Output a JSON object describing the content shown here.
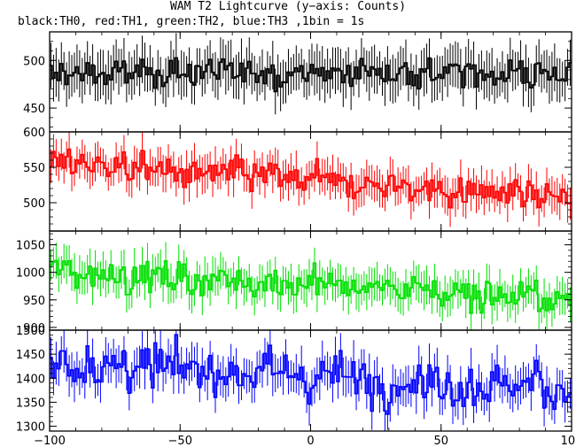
{
  "title": "WAM T2 Lightcurve (y−axis: Counts)",
  "subtitle": "black:TH0, red:TH1, green:TH2, blue:TH3 ,1bin = 1s",
  "chart_data": [
    {
      "type": "line",
      "series": [
        {
          "name": "TH0",
          "color": "#000000",
          "mean": 487,
          "trend": 0,
          "noise": 13,
          "error": 22
        }
      ],
      "x_range": [
        -100,
        100
      ],
      "ylim": [
        425,
        530
      ],
      "yticks": [
        450,
        500
      ],
      "xticks": [
        -100,
        -50,
        0,
        50,
        100
      ]
    },
    {
      "type": "line",
      "series": [
        {
          "name": "TH1",
          "color": "#ff0000",
          "mean": 531,
          "trend": -0.25,
          "noise": 18,
          "error": 23
        }
      ],
      "x_range": [
        -100,
        100
      ],
      "ylim": [
        460,
        600
      ],
      "yticks": [
        500,
        550,
        600
      ],
      "xticks": [
        -100,
        -50,
        0,
        50,
        100
      ]
    },
    {
      "type": "line",
      "series": [
        {
          "name": "TH2",
          "color": "#00e000",
          "mean": 978,
          "trend": -0.27,
          "noise": 24,
          "error": 30
        }
      ],
      "x_range": [
        -100,
        100
      ],
      "ylim": [
        895,
        1075
      ],
      "yticks": [
        900,
        950,
        1000,
        1050
      ],
      "xticks": [
        -100,
        -50,
        0,
        50,
        100
      ]
    },
    {
      "type": "line",
      "series": [
        {
          "name": "TH3",
          "color": "#0000ff",
          "mean": 1405,
          "trend": -0.25,
          "noise": 40,
          "error": 38
        }
      ],
      "x_range": [
        -100,
        100
      ],
      "ylim": [
        1290,
        1500
      ],
      "yticks": [
        1300,
        1350,
        1400,
        1450,
        1500
      ],
      "xticks": [
        -100,
        -50,
        0,
        50,
        100
      ],
      "xticklabels": [
        "−100",
        "−50",
        "0",
        "50",
        "100"
      ]
    }
  ]
}
